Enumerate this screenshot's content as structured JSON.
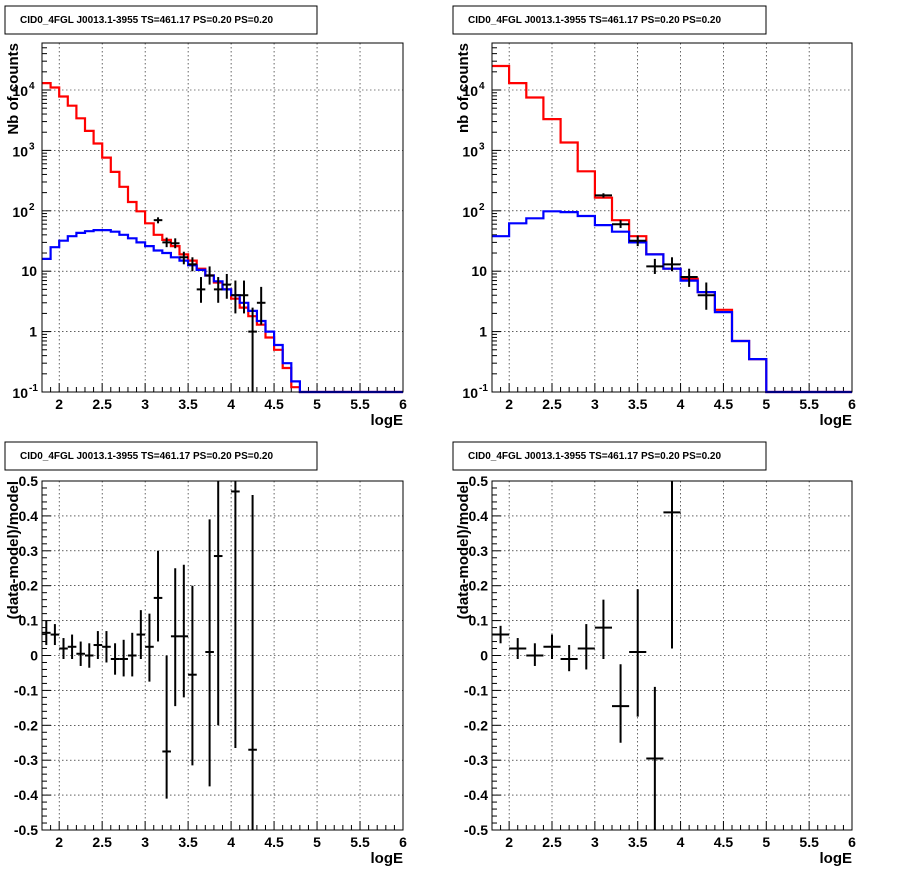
{
  "chart_data": [
    {
      "type": "histogram",
      "title": "CID0_4FGL J0013.1-3955 TS=461.17 PS=0.20 PS=0.20",
      "xlabel": "logE",
      "ylabel": "Nb of counts",
      "xlim": [
        1.8,
        6.0
      ],
      "ylim": [
        0.1,
        60000
      ],
      "yscale": "log",
      "grid": true,
      "x_ticks": [
        "2",
        "2.5",
        "3",
        "3.5",
        "4",
        "4.5",
        "5",
        "5.5",
        "6"
      ],
      "y_ticks": [
        "10^-1",
        "1",
        "10",
        "10^2",
        "10^3",
        "10^4"
      ],
      "bin_edges": [
        1.8,
        1.9,
        2.0,
        2.1,
        2.2,
        2.3,
        2.4,
        2.5,
        2.6,
        2.7,
        2.8,
        2.9,
        3.0,
        3.1,
        3.2,
        3.3,
        3.4,
        3.5,
        3.6,
        3.7,
        3.8,
        3.9,
        4.0,
        4.1,
        4.2,
        4.3,
        4.4,
        4.5,
        4.6,
        4.7,
        4.8,
        4.9,
        5.0,
        5.1,
        5.2,
        5.3,
        5.4,
        5.5,
        5.6,
        5.7,
        5.8,
        5.9,
        6.0
      ],
      "series": [
        {
          "color": "#ff0000",
          "kind": "step",
          "values": [
            13000,
            11000,
            7800,
            5500,
            3400,
            2100,
            1300,
            760,
            440,
            250,
            140,
            98,
            62,
            40,
            33,
            26,
            19,
            15,
            11,
            8.5,
            6.5,
            5.0,
            3.5,
            2.5,
            1.8,
            1.3,
            0.8,
            0.5,
            0.25,
            0.12,
            0.1,
            0.1,
            0.1,
            0.1,
            0.1,
            0.1,
            0.1,
            0.1,
            0.1,
            0.1,
            0.1,
            0.1
          ]
        },
        {
          "color": "#0000ff",
          "kind": "step",
          "values": [
            16,
            25,
            32,
            38,
            43,
            46,
            48,
            48,
            45,
            40,
            35,
            30,
            26,
            22,
            20,
            17,
            15,
            12.5,
            10.5,
            8.5,
            6.8,
            5.0,
            4.0,
            3.0,
            2.2,
            1.5,
            1.0,
            0.6,
            0.3,
            0.15,
            0.1,
            0.1,
            0.1,
            0.1,
            0.1,
            0.1,
            0.1,
            0.1,
            0.1,
            0.1,
            0.1,
            0.1
          ]
        }
      ],
      "data_points": [
        {
          "x": 3.15,
          "y": 70,
          "xerr": 0.05,
          "ylo": 62,
          "yhi": 78
        },
        {
          "x": 3.25,
          "y": 30,
          "xerr": 0.05,
          "ylo": 25,
          "yhi": 36
        },
        {
          "x": 3.35,
          "y": 29,
          "xerr": 0.05,
          "ylo": 24,
          "yhi": 35
        },
        {
          "x": 3.45,
          "y": 17,
          "xerr": 0.05,
          "ylo": 13,
          "yhi": 21
        },
        {
          "x": 3.55,
          "y": 13,
          "xerr": 0.05,
          "ylo": 10,
          "yhi": 17
        },
        {
          "x": 3.65,
          "y": 5,
          "xerr": 0.05,
          "ylo": 3,
          "yhi": 8
        },
        {
          "x": 3.75,
          "y": 8.5,
          "xerr": 0.05,
          "ylo": 6,
          "yhi": 12
        },
        {
          "x": 3.85,
          "y": 5,
          "xerr": 0.05,
          "ylo": 3,
          "yhi": 8
        },
        {
          "x": 3.95,
          "y": 6,
          "xerr": 0.05,
          "ylo": 3.5,
          "yhi": 9
        },
        {
          "x": 4.05,
          "y": 4,
          "xerr": 0.05,
          "ylo": 2,
          "yhi": 7
        },
        {
          "x": 4.15,
          "y": 4,
          "xerr": 0.05,
          "ylo": 2,
          "yhi": 7
        },
        {
          "x": 4.25,
          "y": 1,
          "xerr": 0.05,
          "ylo": 0.1,
          "yhi": 2.5
        },
        {
          "x": 4.35,
          "y": 3,
          "xerr": 0.05,
          "ylo": 1.3,
          "yhi": 5.5
        }
      ]
    },
    {
      "type": "histogram",
      "title": "CID0_4FGL J0013.1-3955 TS=461.17 PS=0.20 PS=0.20",
      "xlabel": "logE",
      "ylabel": "nb of counts",
      "xlim": [
        1.8,
        6.0
      ],
      "ylim": [
        0.1,
        60000
      ],
      "yscale": "log",
      "grid": true,
      "x_ticks": [
        "2",
        "2.5",
        "3",
        "3.5",
        "4",
        "4.5",
        "5",
        "5.5",
        "6"
      ],
      "y_ticks": [
        "10^-1",
        "1",
        "10",
        "10^2",
        "10^3",
        "10^4"
      ],
      "bin_edges": [
        1.8,
        2.0,
        2.2,
        2.4,
        2.6,
        2.8,
        3.0,
        3.2,
        3.4,
        3.6,
        3.8,
        4.0,
        4.2,
        4.4,
        4.6,
        4.8,
        5.0,
        5.2,
        5.4,
        5.6,
        5.8,
        6.0
      ],
      "series": [
        {
          "color": "#ff0000",
          "kind": "step",
          "values": [
            25000,
            13000,
            7500,
            3300,
            1350,
            450,
            165,
            70,
            38,
            19,
            11,
            7.5,
            4.5,
            2.3,
            0.7,
            0.35,
            0.1,
            0.1,
            0.1,
            0.1,
            0.1
          ]
        },
        {
          "color": "#0000ff",
          "kind": "step",
          "values": [
            38,
            62,
            75,
            98,
            95,
            82,
            58,
            45,
            30,
            19,
            11,
            7.0,
            4.5,
            2.1,
            0.7,
            0.35,
            0.1,
            0.1,
            0.1,
            0.1,
            0.1
          ]
        }
      ],
      "data_points": [
        {
          "x": 3.1,
          "y": 180,
          "xerr": 0.1,
          "ylo": 165,
          "yhi": 195
        },
        {
          "x": 3.3,
          "y": 60,
          "xerr": 0.1,
          "ylo": 52,
          "yhi": 70
        },
        {
          "x": 3.5,
          "y": 32,
          "xerr": 0.1,
          "ylo": 26,
          "yhi": 39
        },
        {
          "x": 3.7,
          "y": 12,
          "xerr": 0.1,
          "ylo": 9,
          "yhi": 16
        },
        {
          "x": 3.9,
          "y": 13,
          "xerr": 0.1,
          "ylo": 10,
          "yhi": 17
        },
        {
          "x": 4.1,
          "y": 8,
          "xerr": 0.1,
          "ylo": 5.5,
          "yhi": 11
        },
        {
          "x": 4.3,
          "y": 4,
          "xerr": 0.1,
          "ylo": 2.3,
          "yhi": 6.5
        }
      ]
    },
    {
      "type": "scatter",
      "title": "CID0_4FGL J0013.1-3955 TS=461.17 PS=0.20 PS=0.20",
      "xlabel": "logE",
      "ylabel": "(data-model)/model",
      "xlim": [
        1.8,
        6.0
      ],
      "ylim": [
        -0.5,
        0.5
      ],
      "grid": true,
      "x_ticks": [
        "2",
        "2.5",
        "3",
        "3.5",
        "4",
        "4.5",
        "5",
        "5.5",
        "6"
      ],
      "y_ticks": [
        "-0.5",
        "-0.4",
        "-0.3",
        "-0.2",
        "-0.1",
        "0",
        "0.1",
        "0.2",
        "0.3",
        "0.4",
        "0.5"
      ],
      "data_points": [
        {
          "x": 1.85,
          "y": 0.065,
          "xerr": 0.05,
          "ylo": 0.03,
          "yhi": 0.1
        },
        {
          "x": 1.95,
          "y": 0.06,
          "xerr": 0.05,
          "ylo": 0.03,
          "yhi": 0.09
        },
        {
          "x": 2.05,
          "y": 0.02,
          "xerr": 0.05,
          "ylo": -0.01,
          "yhi": 0.05
        },
        {
          "x": 2.15,
          "y": 0.025,
          "xerr": 0.05,
          "ylo": -0.01,
          "yhi": 0.06
        },
        {
          "x": 2.25,
          "y": 0.005,
          "xerr": 0.05,
          "ylo": -0.03,
          "yhi": 0.04
        },
        {
          "x": 2.35,
          "y": 0.0,
          "xerr": 0.05,
          "ylo": -0.035,
          "yhi": 0.035
        },
        {
          "x": 2.45,
          "y": 0.03,
          "xerr": 0.05,
          "ylo": -0.01,
          "yhi": 0.07
        },
        {
          "x": 2.55,
          "y": 0.025,
          "xerr": 0.05,
          "ylo": -0.02,
          "yhi": 0.07
        },
        {
          "x": 2.65,
          "y": -0.01,
          "xerr": 0.05,
          "ylo": -0.055,
          "yhi": 0.035
        },
        {
          "x": 2.75,
          "y": -0.01,
          "xerr": 0.05,
          "ylo": -0.06,
          "yhi": 0.045
        },
        {
          "x": 2.85,
          "y": 0.0,
          "xerr": 0.05,
          "ylo": -0.06,
          "yhi": 0.065
        },
        {
          "x": 2.95,
          "y": 0.06,
          "xerr": 0.05,
          "ylo": -0.01,
          "yhi": 0.13
        },
        {
          "x": 3.05,
          "y": 0.025,
          "xerr": 0.05,
          "ylo": -0.075,
          "yhi": 0.12
        },
        {
          "x": 3.15,
          "y": 0.165,
          "xerr": 0.05,
          "ylo": 0.04,
          "yhi": 0.3
        },
        {
          "x": 3.25,
          "y": -0.275,
          "xerr": 0.05,
          "ylo": -0.41,
          "yhi": 0.0
        },
        {
          "x": 3.35,
          "y": 0.055,
          "xerr": 0.05,
          "ylo": -0.145,
          "yhi": 0.25
        },
        {
          "x": 3.45,
          "y": 0.055,
          "xerr": 0.05,
          "ylo": -0.12,
          "yhi": 0.26
        },
        {
          "x": 3.55,
          "y": -0.055,
          "xerr": 0.05,
          "ylo": -0.315,
          "yhi": 0.2
        },
        {
          "x": 3.75,
          "y": 0.01,
          "xerr": 0.05,
          "ylo": -0.375,
          "yhi": 0.39
        },
        {
          "x": 3.85,
          "y": 0.285,
          "xerr": 0.05,
          "ylo": -0.2,
          "yhi": 0.5
        },
        {
          "x": 4.05,
          "y": 0.47,
          "xerr": 0.05,
          "ylo": -0.265,
          "yhi": 0.5
        },
        {
          "x": 4.25,
          "y": -0.27,
          "xerr": 0.05,
          "ylo": -0.5,
          "yhi": 0.46
        }
      ]
    },
    {
      "type": "scatter",
      "title": "CID0_4FGL J0013.1-3955 TS=461.17 PS=0.20 PS=0.20",
      "xlabel": "logE",
      "ylabel": "(data-model)/model",
      "xlim": [
        1.8,
        6.0
      ],
      "ylim": [
        -0.5,
        0.5
      ],
      "grid": true,
      "x_ticks": [
        "2",
        "2.5",
        "3",
        "3.5",
        "4",
        "4.5",
        "5",
        "5.5",
        "6"
      ],
      "y_ticks": [
        "-0.5",
        "-0.4",
        "-0.3",
        "-0.2",
        "-0.1",
        "0",
        "0.1",
        "0.2",
        "0.3",
        "0.4",
        "0.5"
      ],
      "data_points": [
        {
          "x": 1.9,
          "y": 0.06,
          "xerr": 0.1,
          "ylo": 0.035,
          "yhi": 0.085
        },
        {
          "x": 2.1,
          "y": 0.02,
          "xerr": 0.1,
          "ylo": -0.01,
          "yhi": 0.05
        },
        {
          "x": 2.3,
          "y": 0.0,
          "xerr": 0.1,
          "ylo": -0.03,
          "yhi": 0.035
        },
        {
          "x": 2.5,
          "y": 0.025,
          "xerr": 0.1,
          "ylo": -0.01,
          "yhi": 0.06
        },
        {
          "x": 2.7,
          "y": -0.01,
          "xerr": 0.1,
          "ylo": -0.045,
          "yhi": 0.03
        },
        {
          "x": 2.9,
          "y": 0.02,
          "xerr": 0.1,
          "ylo": -0.04,
          "yhi": 0.09
        },
        {
          "x": 3.1,
          "y": 0.08,
          "xerr": 0.1,
          "ylo": -0.01,
          "yhi": 0.16
        },
        {
          "x": 3.3,
          "y": -0.145,
          "xerr": 0.1,
          "ylo": -0.25,
          "yhi": -0.025
        },
        {
          "x": 3.5,
          "y": 0.01,
          "xerr": 0.1,
          "ylo": -0.175,
          "yhi": 0.19
        },
        {
          "x": 3.7,
          "y": -0.295,
          "xerr": 0.1,
          "ylo": -0.5,
          "yhi": -0.09
        },
        {
          "x": 3.9,
          "y": 0.41,
          "xerr": 0.1,
          "ylo": 0.02,
          "yhi": 0.5
        }
      ]
    }
  ]
}
